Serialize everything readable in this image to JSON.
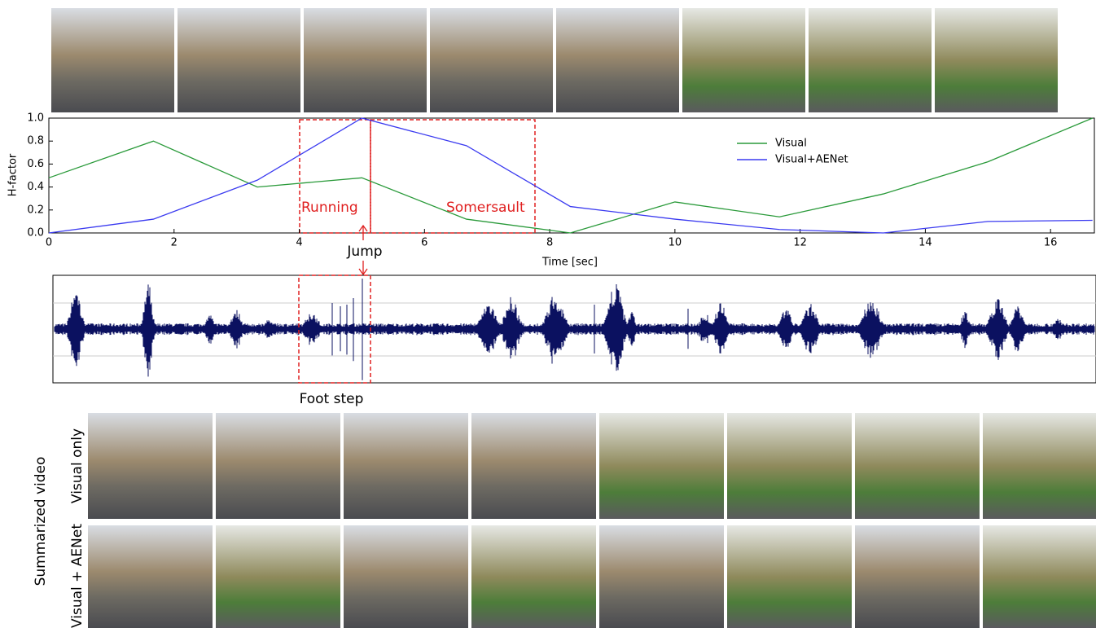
{
  "chart_data": {
    "type": "line",
    "xlabel": "Time [sec]",
    "ylabel": "H-factor",
    "x": [
      0,
      1.67,
      3.33,
      5,
      6.67,
      8.33,
      10,
      11.67,
      13.33,
      15,
      16.67
    ],
    "series": [
      {
        "name": "Visual",
        "color": "#2a9a3a",
        "values": [
          0.48,
          0.8,
          0.4,
          0.48,
          0.12,
          0.0,
          0.27,
          0.14,
          0.34,
          0.62,
          1.0
        ]
      },
      {
        "name": "Visual+AENet",
        "color": "#3a3af0",
        "values": [
          0.0,
          0.12,
          0.46,
          1.0,
          0.76,
          0.23,
          0.12,
          0.03,
          0.0,
          0.1,
          0.11
        ]
      }
    ],
    "xlim": [
      0,
      16.7
    ],
    "ylim": [
      0,
      1
    ],
    "xticks": [
      0,
      2,
      4,
      6,
      8,
      10,
      12,
      14,
      16
    ],
    "yticks": [
      {
        "value": 0,
        "label": "0.0"
      },
      {
        "value": 0.2,
        "label": "0.2"
      },
      {
        "value": 0.4,
        "label": "0.4"
      },
      {
        "value": 0.6,
        "label": "0.6"
      },
      {
        "value": 0.8,
        "label": "0.8"
      },
      {
        "value": 1,
        "label": "1.0"
      }
    ],
    "grid": false,
    "legend": "upper right",
    "annotations": [
      "Running",
      "Somersault",
      "Jump",
      "Foot step"
    ]
  },
  "summary": {
    "title": "Summarized video",
    "rows": [
      "Visual only",
      "Visual + AENet"
    ]
  }
}
